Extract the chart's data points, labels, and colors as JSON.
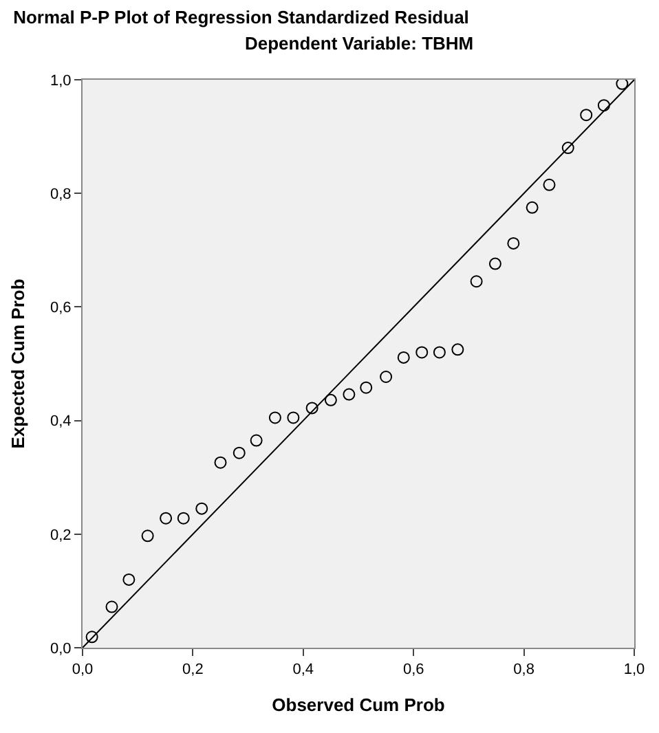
{
  "chart_data": {
    "type": "scatter",
    "title": "Normal P-P Plot of Regression Standardized Residual",
    "subtitle": "Dependent Variable: TBHM",
    "xlabel": "Observed Cum Prob",
    "ylabel": "Expected Cum Prob",
    "x": [
      0.017,
      0.053,
      0.084,
      0.118,
      0.151,
      0.183,
      0.216,
      0.25,
      0.284,
      0.315,
      0.349,
      0.382,
      0.416,
      0.45,
      0.483,
      0.514,
      0.55,
      0.582,
      0.615,
      0.647,
      0.68,
      0.714,
      0.748,
      0.781,
      0.815,
      0.846,
      0.88,
      0.913,
      0.945,
      0.978
    ],
    "series": [
      {
        "color": "#000000",
        "marker": "circle",
        "values": [
          0.019,
          0.072,
          0.12,
          0.197,
          0.228,
          0.228,
          0.245,
          0.326,
          0.343,
          0.365,
          0.405,
          0.405,
          0.422,
          0.436,
          0.446,
          0.458,
          0.477,
          0.511,
          0.52,
          0.52,
          0.525,
          0.645,
          0.676,
          0.712,
          0.775,
          0.815,
          0.88,
          0.938,
          0.955,
          0.993
        ]
      },
      {
        "type": "line",
        "color": "#000000",
        "x": [
          0,
          1
        ],
        "values": [
          0,
          1
        ],
        "line_style": "solid"
      }
    ],
    "xlim": [
      0,
      1
    ],
    "ylim": [
      0,
      1
    ],
    "xticks": [
      {
        "value": 0,
        "label": "0,0"
      },
      {
        "value": 0.2,
        "label": "0,2"
      },
      {
        "value": 0.4,
        "label": "0,4"
      },
      {
        "value": 0.6,
        "label": "0,6"
      },
      {
        "value": 0.8,
        "label": "0,8"
      },
      {
        "value": 1,
        "label": "1,0"
      }
    ],
    "yticks": [
      {
        "value": 0,
        "label": "0,0"
      },
      {
        "value": 0.2,
        "label": "0,2"
      },
      {
        "value": 0.4,
        "label": "0,4"
      },
      {
        "value": 0.6,
        "label": "0,6"
      },
      {
        "value": 0.8,
        "label": "0,8"
      },
      {
        "value": 1,
        "label": "1,0"
      }
    ],
    "grid": false,
    "legend": false
  }
}
